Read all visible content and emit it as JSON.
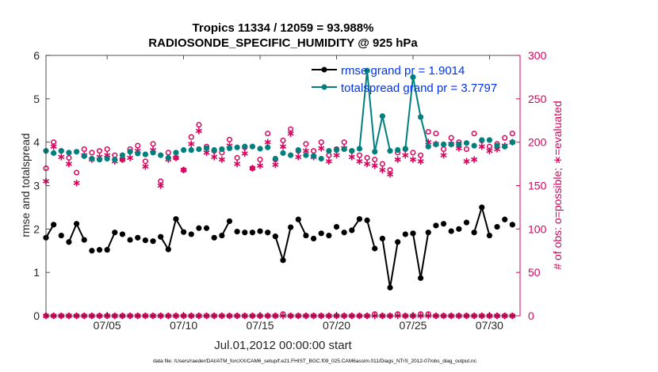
{
  "chart_data": {
    "type": "line",
    "title": "Tropics 11334 / 12059 = 93.988%",
    "subtitle": "RADIOSONDE_SPECIFIC_HUMIDITY @ 925 hPa",
    "xlabel": "Jul.01,2012 00:00:00 start",
    "ylabel_left": "rmse and totalspread",
    "ylabel_right": "# of obs: o=possible; ∗=evaluated",
    "footer": "data file: /Users/raeder/DAI/ATM_forcXX/CAM6_setup/f.e21.FHIST_BGC.f09_025.CAM6assim.011/Diags_NTrS_2012-07/obs_diag_output.nc",
    "xlim": [
      1,
      32
    ],
    "ylim_left": [
      0,
      6
    ],
    "ylim_right": [
      0,
      300
    ],
    "x_ticks": [
      5,
      10,
      15,
      20,
      25,
      30
    ],
    "x_tick_labels": [
      "07/05",
      "07/10",
      "07/15",
      "07/20",
      "07/25",
      "07/30"
    ],
    "y_ticks_left": [
      0,
      1,
      2,
      3,
      4,
      5,
      6
    ],
    "y_ticks_right": [
      0,
      50,
      100,
      150,
      200,
      250,
      300
    ],
    "colors": {
      "rmse": "#000000",
      "spread": "#007f7f",
      "obs": "#d9005b",
      "legend_text": "#0033ee"
    },
    "legend": {
      "position": "top-right",
      "entries": [
        "rmse grand pr = 1.9014",
        "totalspread grand pr = 3.7797"
      ]
    },
    "x": [
      1.0,
      1.5,
      2.0,
      2.5,
      3.0,
      3.5,
      4.0,
      4.5,
      5.0,
      5.5,
      6.0,
      6.5,
      7.0,
      7.5,
      8.0,
      8.5,
      9.0,
      9.5,
      10.0,
      10.5,
      11.0,
      11.5,
      12.0,
      12.5,
      13.0,
      13.5,
      14.0,
      14.5,
      15.0,
      15.5,
      16.0,
      16.5,
      17.0,
      17.5,
      18.0,
      18.5,
      19.0,
      19.5,
      20.0,
      20.5,
      21.0,
      21.5,
      22.0,
      22.5,
      23.0,
      23.5,
      24.0,
      24.5,
      25.0,
      25.5,
      26.0,
      26.5,
      27.0,
      27.5,
      28.0,
      28.5,
      29.0,
      29.5,
      30.0,
      30.5,
      31.0,
      31.5
    ],
    "series": [
      {
        "name": "rmse",
        "values": [
          1.8,
          2.1,
          1.85,
          1.7,
          2.12,
          1.75,
          1.5,
          1.52,
          1.52,
          1.92,
          1.88,
          1.75,
          1.8,
          1.74,
          1.72,
          1.82,
          1.53,
          2.23,
          1.93,
          1.88,
          2.02,
          2.02,
          1.8,
          1.85,
          2.18,
          1.94,
          1.92,
          1.92,
          1.95,
          1.92,
          1.83,
          1.28,
          2.04,
          2.22,
          1.85,
          1.78,
          1.9,
          1.85,
          2.05,
          1.92,
          1.97,
          2.23,
          2.2,
          1.55,
          1.78,
          0.65,
          1.7,
          1.88,
          1.9,
          0.87,
          1.92,
          2.08,
          2.12,
          1.95,
          2.0,
          2.15,
          1.92,
          2.5,
          1.85,
          2.05,
          2.22,
          2.1
        ]
      },
      {
        "name": "totalspread",
        "values": [
          3.8,
          3.75,
          3.8,
          3.76,
          3.78,
          3.68,
          3.62,
          3.6,
          3.62,
          3.6,
          3.7,
          3.78,
          3.74,
          3.72,
          3.76,
          3.7,
          3.64,
          3.76,
          3.82,
          3.82,
          3.84,
          3.86,
          3.82,
          3.84,
          3.86,
          3.88,
          3.9,
          3.9,
          3.85,
          3.88,
          3.62,
          3.75,
          3.7,
          3.82,
          3.7,
          3.68,
          3.62,
          3.8,
          3.82,
          3.84,
          3.8,
          3.85,
          5.65,
          3.78,
          4.6,
          3.8,
          3.82,
          3.85,
          5.5,
          4.58,
          3.9,
          3.95,
          3.95,
          3.95,
          3.95,
          3.98,
          3.92,
          4.05,
          4.05,
          3.92,
          3.9,
          4.0
        ]
      },
      {
        "name": "obs_possible",
        "values": [
          170,
          200,
          190,
          182,
          165,
          192,
          188,
          190,
          192,
          185,
          180,
          192,
          196,
          178,
          198,
          155,
          188,
          182,
          168,
          206,
          220,
          195,
          190,
          188,
          203,
          182,
          194,
          170,
          180,
          210,
          180,
          202,
          215,
          190,
          198,
          190,
          200,
          185,
          192,
          200,
          190,
          185,
          182,
          180,
          175,
          168,
          188,
          192,
          188,
          185,
          212,
          210,
          192,
          205,
          200,
          192,
          210,
          202,
          195,
          198,
          205,
          210
        ]
      },
      {
        "name": "obs_evaluated",
        "values": [
          155,
          195,
          183,
          175,
          153,
          185,
          180,
          183,
          185,
          178,
          180,
          182,
          190,
          172,
          191,
          150,
          180,
          182,
          168,
          198,
          213,
          188,
          183,
          180,
          196,
          175,
          187,
          170,
          173,
          200,
          174,
          195,
          210,
          183,
          190,
          183,
          193,
          178,
          185,
          193,
          183,
          178,
          175,
          173,
          168,
          163,
          180,
          185,
          180,
          178,
          200,
          198,
          185,
          198,
          193,
          178,
          180,
          195,
          190,
          192,
          196,
          200
        ]
      }
    ],
    "obs_bottom_possible": [
      0,
      0,
      0,
      0,
      0,
      0,
      0,
      0,
      0,
      0,
      0,
      0,
      0,
      0,
      0,
      0,
      0,
      0,
      0,
      0,
      0,
      0,
      0,
      0,
      0,
      0,
      0,
      0,
      0,
      0,
      0,
      2,
      0,
      0,
      0,
      0,
      0,
      0,
      0,
      0,
      0,
      0,
      0,
      2,
      0,
      0,
      2,
      0,
      0,
      2,
      2,
      0,
      0,
      0,
      0,
      0,
      0,
      0,
      0,
      0,
      0,
      0
    ],
    "obs_bottom_evaluated": [
      0,
      0,
      0,
      0,
      0,
      0,
      0,
      0,
      0,
      0,
      0,
      0,
      0,
      0,
      0,
      0,
      0,
      0,
      0,
      0,
      0,
      0,
      0,
      0,
      0,
      0,
      0,
      0,
      0,
      0,
      0,
      0,
      0,
      0,
      0,
      0,
      0,
      0,
      0,
      0,
      0,
      0,
      0,
      0,
      0,
      0,
      0,
      0,
      0,
      0,
      0,
      0,
      0,
      0,
      0,
      0,
      0,
      0,
      0,
      0,
      0,
      0
    ]
  }
}
